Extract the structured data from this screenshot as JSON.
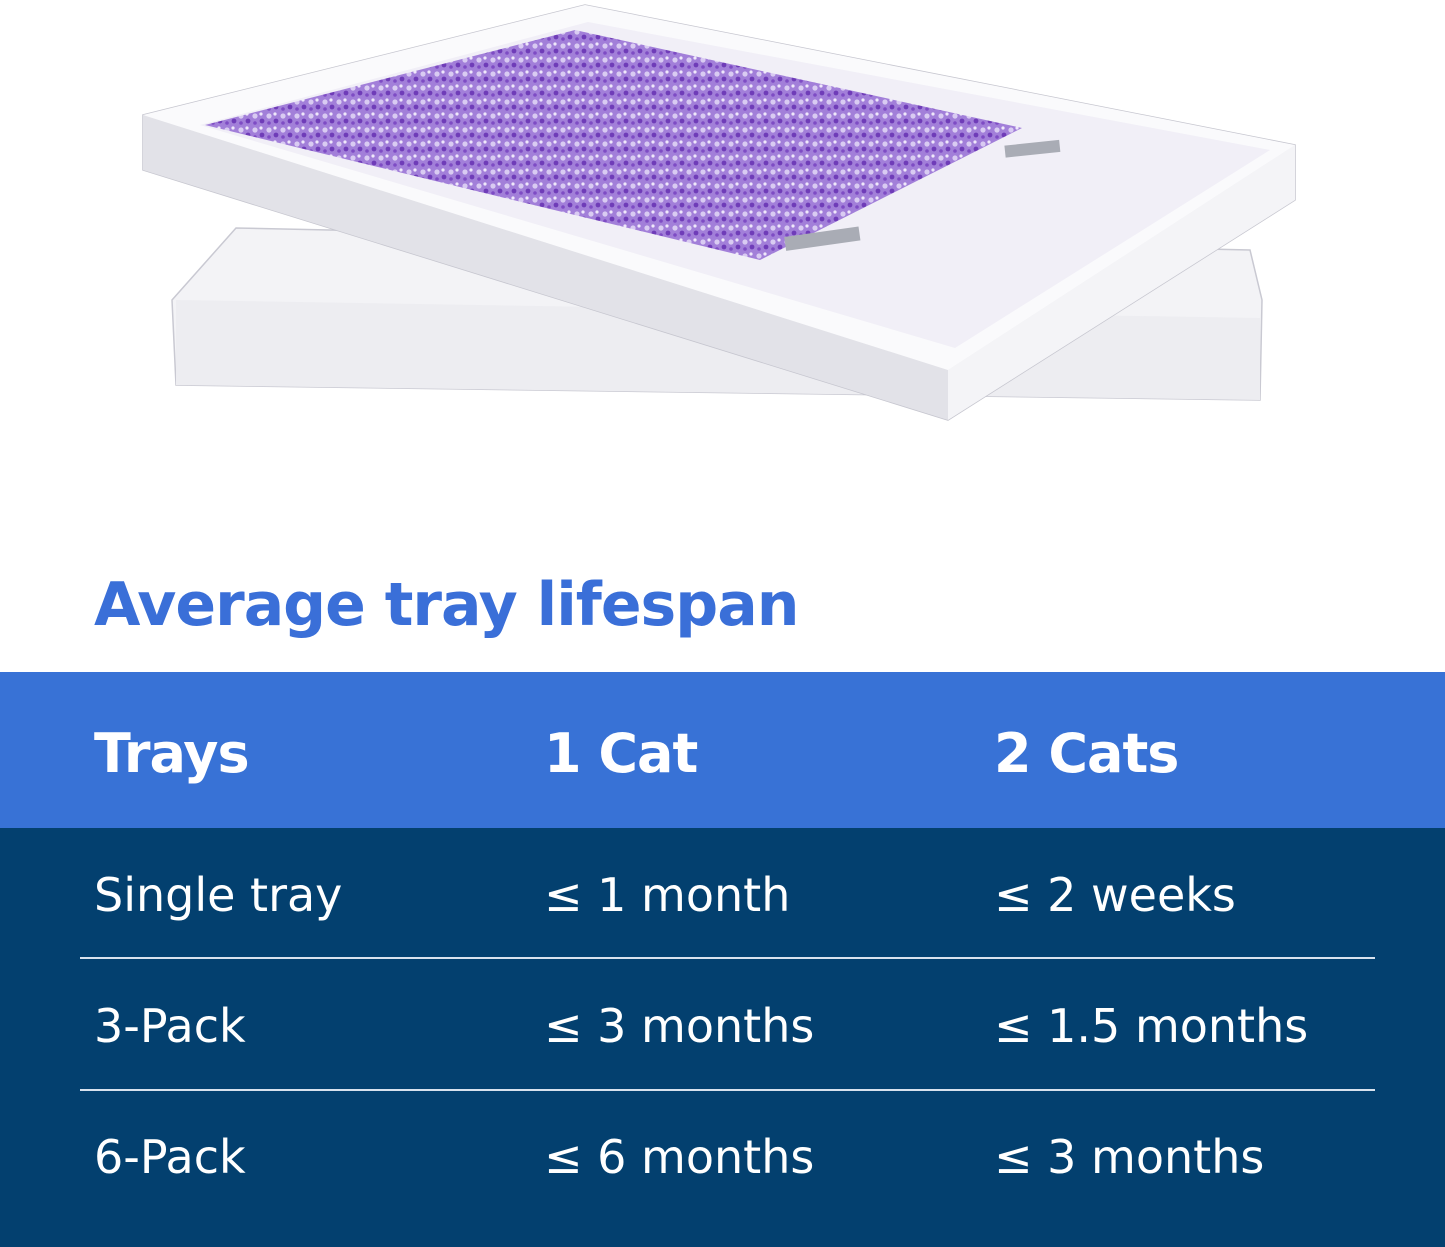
{
  "title": "Average tray lifespan",
  "colors": {
    "title": "#3a6fd8",
    "header_bg": "#3872d6",
    "body_bg": "#03406f",
    "litter": "#8a5cc8"
  },
  "table": {
    "headers": [
      "Trays",
      "1 Cat",
      "2 Cats"
    ],
    "rows": [
      [
        "Single tray",
        "≤ 1 month",
        "≤ 2 weeks"
      ],
      [
        "3-Pack",
        "≤ 3 months",
        "≤ 1.5 months"
      ],
      [
        "6-Pack",
        "≤ 6 months",
        "≤ 3 months"
      ]
    ]
  }
}
